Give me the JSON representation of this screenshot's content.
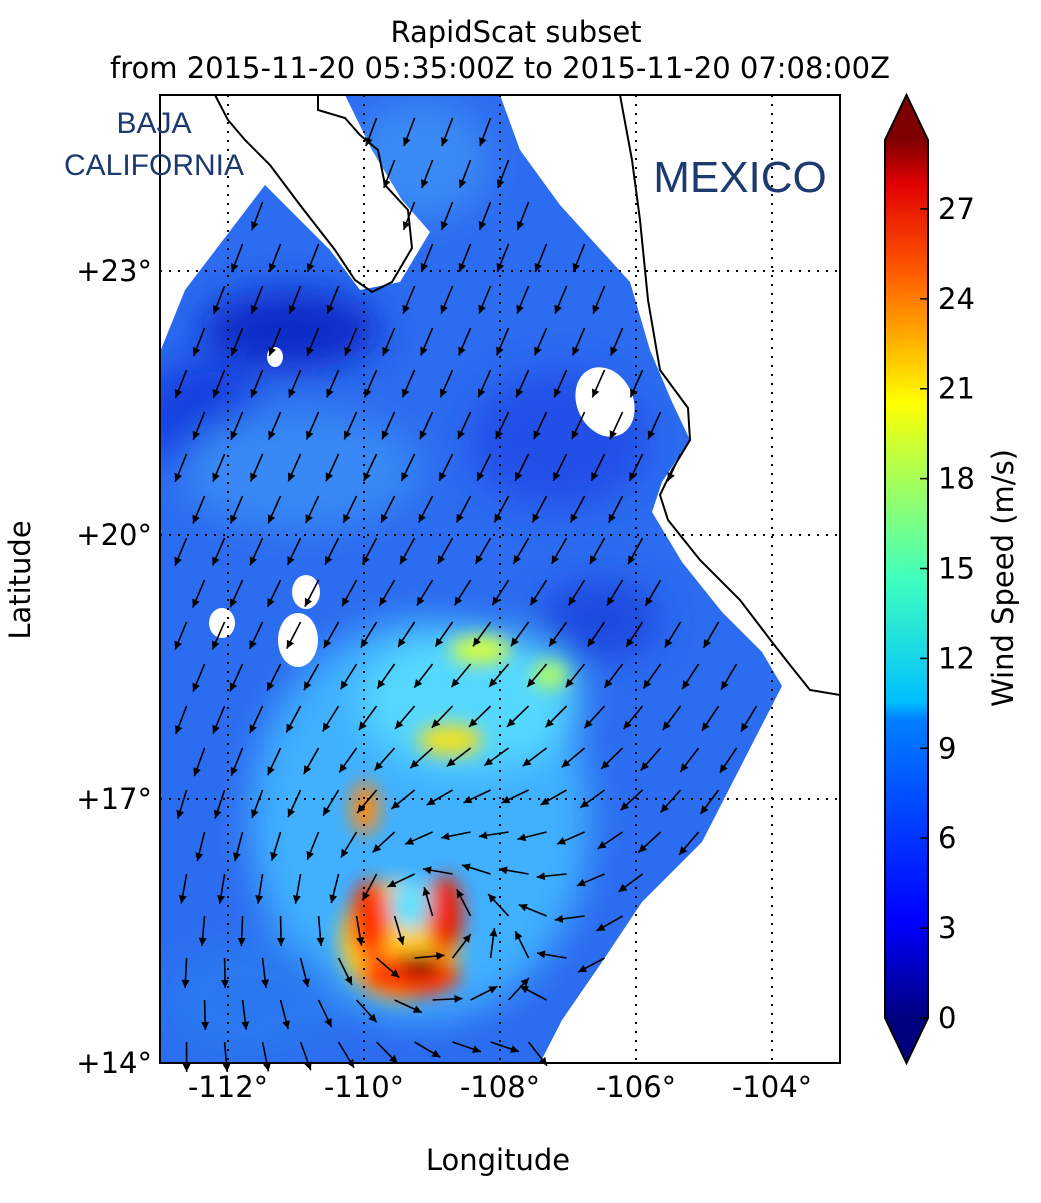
{
  "title": "RapidScat subset",
  "subtitle": "from 2015-11-20 05:35:00Z to 2015-11-20 07:08:00Z",
  "x_axis": {
    "label": "Longitude",
    "lim": [
      -113,
      -103
    ],
    "ticks": [
      {
        "value": -112,
        "label": "-112°"
      },
      {
        "value": -110,
        "label": "-110°"
      },
      {
        "value": -108,
        "label": "-108°"
      },
      {
        "value": -106,
        "label": "-106°"
      },
      {
        "value": -104,
        "label": "-104°"
      }
    ]
  },
  "y_axis": {
    "label": "Latitude",
    "lim": [
      14,
      25
    ],
    "ticks": [
      {
        "value": 14,
        "label": "+14°"
      },
      {
        "value": 17,
        "label": "+17°"
      },
      {
        "value": 20,
        "label": "+20°"
      },
      {
        "value": 23,
        "label": "+23°"
      }
    ]
  },
  "colorbar": {
    "label": "Wind Speed (m/s)",
    "lim": [
      0,
      29.3
    ],
    "ticks": [
      0,
      3,
      6,
      9,
      12,
      15,
      18,
      21,
      24,
      27
    ]
  },
  "place_labels": {
    "baja": [
      "BAJA",
      "CALIFORNIA"
    ],
    "mexico": "MEXICO"
  }
}
